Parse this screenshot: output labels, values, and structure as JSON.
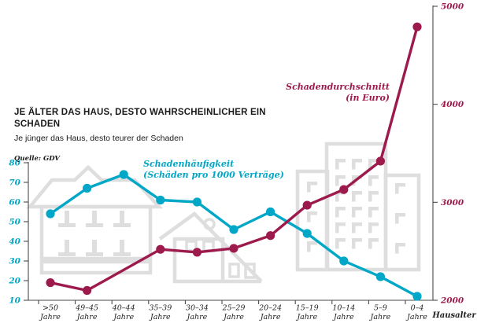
{
  "title": "JE ÄLTER DAS HAUS, DESTO WAHRSCHEINLICHER EIN SCHADEN",
  "subtitle": "Je jünger das Haus, desto teurer der Schaden",
  "source": "Quelle: GDV",
  "colors": {
    "frequency_line": "#00a7c7",
    "severity_line": "#9d1a4d",
    "building_art": "#dedede",
    "axis": "#4a4a4a"
  },
  "chart_data": {
    "type": "line",
    "categories": [
      ">50",
      "49–45",
      "40–44",
      "35–39",
      "30–34",
      "25–29",
      "20–24",
      "15–19",
      "10–14",
      "5–9",
      "0–4"
    ],
    "category_unit": "Jahre",
    "x_axis_label": "Hausalter",
    "series": [
      {
        "name": "Schadenhäufigkeit",
        "label_lines": [
          "Schadenhäufigkeit",
          "(Schäden pro 1000 Verträge)"
        ],
        "axis": "left",
        "color": "#00a7c7",
        "values": [
          54,
          67,
          74,
          61,
          60,
          46,
          55,
          44,
          30,
          22,
          12
        ]
      },
      {
        "name": "Schadendurchschnitt",
        "label_lines": [
          "Schadendurchschnitt",
          "(in Euro)"
        ],
        "axis": "right",
        "color": "#9d1a4d",
        "values": [
          2180,
          2100,
          null,
          2520,
          2490,
          2530,
          2660,
          2970,
          3130,
          3420,
          4790
        ]
      }
    ],
    "left_axis": {
      "ticks": [
        80,
        70,
        60,
        50,
        40,
        30,
        20,
        10
      ],
      "range": [
        10,
        80
      ]
    },
    "right_axis": {
      "ticks": [
        5000,
        4000,
        3000,
        2000
      ],
      "range": [
        2000,
        5000
      ]
    },
    "grid": false,
    "legend_position": "inline-annotations"
  }
}
